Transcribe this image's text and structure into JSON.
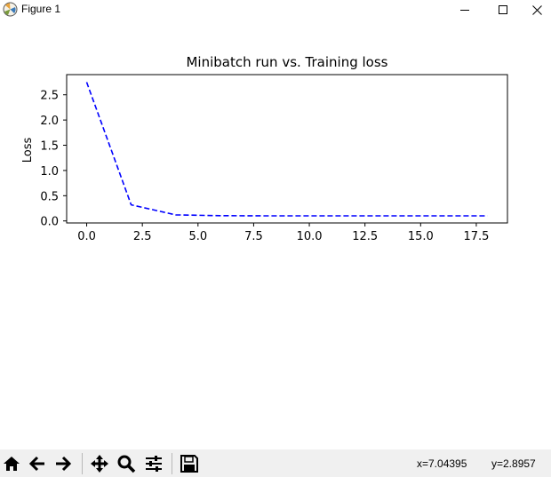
{
  "window": {
    "title": "Figure 1",
    "icon": "matplotlib-icon",
    "controls": [
      "minimize-icon",
      "maximize-icon",
      "close-icon"
    ]
  },
  "toolbar": {
    "tools": [
      "home-icon",
      "back-arrow-icon",
      "forward-arrow-icon",
      "pan-icon",
      "zoom-icon",
      "configure-subplots-icon",
      "save-icon"
    ],
    "coord_x": "x=7.04395",
    "coord_y": "y=2.8957"
  },
  "chart_data": {
    "type": "line",
    "title": "Minibatch run vs.  Training loss",
    "xlabel": "",
    "ylabel": "Loss",
    "xlim": [
      -0.9,
      18.9
    ],
    "ylim": [
      -0.04,
      2.9
    ],
    "xticks": [
      "0.0",
      "2.5",
      "5.0",
      "7.5",
      "10.0",
      "12.5",
      "15.0",
      "17.5"
    ],
    "yticks": [
      "0.0",
      "0.5",
      "1.0",
      "1.5",
      "2.0",
      "2.5"
    ],
    "grid": false,
    "series": [
      {
        "color": "#0000ff",
        "style": "dashed",
        "x": [
          0,
          2,
          4,
          6,
          8,
          10,
          12,
          14,
          16,
          18
        ],
        "y": [
          2.75,
          0.32,
          0.12,
          0.105,
          0.1,
          0.1,
          0.1,
          0.1,
          0.1,
          0.1
        ]
      }
    ]
  }
}
